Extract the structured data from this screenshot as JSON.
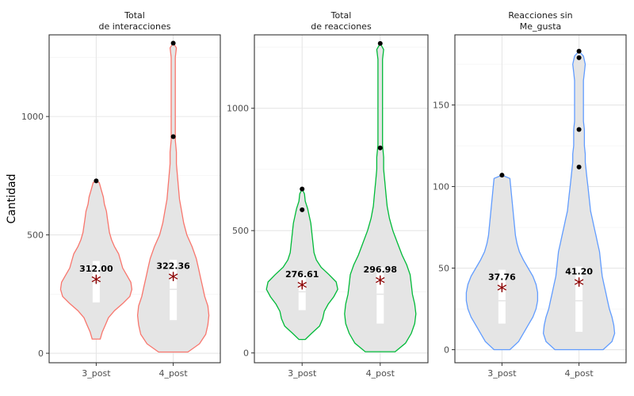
{
  "chart_data": [
    {
      "type": "violin",
      "title": "Total\nde interacciones",
      "ylabel": "Cantidad",
      "categories": [
        "3_post",
        "4_post"
      ],
      "ylim": [
        -40,
        1345
      ],
      "yticks": [
        0,
        500,
        1000
      ],
      "color": "#F8766D",
      "groups": [
        {
          "name": "3_post",
          "mean": 312.0,
          "mean_label": "312.00",
          "box": {
            "q1": 215,
            "q3": 390,
            "median": 300
          },
          "outliers": [
            728
          ],
          "violin": [
            [
              60,
              4
            ],
            [
              90,
              6
            ],
            [
              120,
              9
            ],
            [
              150,
              12
            ],
            [
              180,
              18
            ],
            [
              210,
              26
            ],
            [
              240,
              33
            ],
            [
              270,
              35
            ],
            [
              300,
              34
            ],
            [
              330,
              30
            ],
            [
              360,
              26
            ],
            [
              390,
              24
            ],
            [
              420,
              22
            ],
            [
              450,
              18
            ],
            [
              480,
              15
            ],
            [
              510,
              13
            ],
            [
              540,
              12
            ],
            [
              570,
              11
            ],
            [
              600,
              10
            ],
            [
              630,
              8
            ],
            [
              660,
              7
            ],
            [
              690,
              5
            ],
            [
              720,
              3
            ],
            [
              730,
              0
            ]
          ]
        },
        {
          "name": "4_post",
          "mean": 322.36,
          "mean_label": "322.36",
          "box": {
            "q1": 140,
            "q3": 395,
            "median": 270
          },
          "outliers": [
            915,
            1310
          ],
          "violin": [
            [
              5,
              14
            ],
            [
              40,
              25
            ],
            [
              80,
              31
            ],
            [
              120,
              33
            ],
            [
              160,
              34
            ],
            [
              200,
              33
            ],
            [
              240,
              30
            ],
            [
              280,
              28
            ],
            [
              320,
              26
            ],
            [
              360,
              24
            ],
            [
              400,
              22
            ],
            [
              450,
              18
            ],
            [
              500,
              13
            ],
            [
              550,
              10
            ],
            [
              600,
              8
            ],
            [
              650,
              6
            ],
            [
              700,
              5
            ],
            [
              750,
              4
            ],
            [
              800,
              3
            ],
            [
              850,
              3
            ],
            [
              900,
              2
            ],
            [
              950,
              2
            ],
            [
              1000,
              2
            ],
            [
              1050,
              2
            ],
            [
              1100,
              2
            ],
            [
              1150,
              2
            ],
            [
              1200,
              2
            ],
            [
              1250,
              2
            ],
            [
              1290,
              3
            ],
            [
              1310,
              0
            ]
          ]
        }
      ]
    },
    {
      "type": "violin",
      "title": "Total\nde reacciones",
      "ylabel": "",
      "categories": [
        "3_post",
        "4_post"
      ],
      "ylim": [
        -40,
        1300
      ],
      "yticks": [
        0,
        500,
        1000
      ],
      "color": "#00BA38",
      "groups": [
        {
          "name": "3_post",
          "mean": 276.61,
          "mean_label": "276.61",
          "box": {
            "q1": 175,
            "q3": 320,
            "median": 250
          },
          "outliers": [
            670,
            585
          ],
          "violin": [
            [
              55,
              4
            ],
            [
              80,
              12
            ],
            [
              110,
              22
            ],
            [
              140,
              26
            ],
            [
              170,
              28
            ],
            [
              200,
              33
            ],
            [
              230,
              40
            ],
            [
              260,
              45
            ],
            [
              290,
              43
            ],
            [
              320,
              34
            ],
            [
              350,
              24
            ],
            [
              380,
              18
            ],
            [
              410,
              15
            ],
            [
              440,
              14
            ],
            [
              470,
              13
            ],
            [
              500,
              12
            ],
            [
              530,
              11
            ],
            [
              560,
              9
            ],
            [
              590,
              7
            ],
            [
              620,
              4
            ],
            [
              650,
              3
            ],
            [
              670,
              0
            ]
          ]
        },
        {
          "name": "4_post",
          "mean": 296.98,
          "mean_label": "296.98",
          "box": {
            "q1": 120,
            "q3": 350,
            "median": 240
          },
          "outliers": [
            838,
            1265
          ],
          "violin": [
            [
              5,
              13
            ],
            [
              40,
              22
            ],
            [
              80,
              27
            ],
            [
              120,
              30
            ],
            [
              160,
              31
            ],
            [
              200,
              30
            ],
            [
              240,
              28
            ],
            [
              280,
              27
            ],
            [
              320,
              26
            ],
            [
              360,
              23
            ],
            [
              400,
              19
            ],
            [
              450,
              15
            ],
            [
              500,
              11
            ],
            [
              550,
              8
            ],
            [
              600,
              6
            ],
            [
              650,
              5
            ],
            [
              700,
              4
            ],
            [
              750,
              3
            ],
            [
              800,
              3
            ],
            [
              850,
              2
            ],
            [
              900,
              2
            ],
            [
              950,
              2
            ],
            [
              1000,
              2
            ],
            [
              1050,
              2
            ],
            [
              1100,
              2
            ],
            [
              1150,
              2
            ],
            [
              1200,
              2
            ],
            [
              1240,
              3
            ],
            [
              1265,
              0
            ]
          ]
        }
      ]
    },
    {
      "type": "violin",
      "title": "Reacciones sin\nMe_gusta",
      "ylabel": "",
      "categories": [
        "3_post",
        "4_post"
      ],
      "ylim": [
        -8,
        193
      ],
      "yticks": [
        0,
        50,
        100,
        150
      ],
      "color": "#619CFF",
      "groups": [
        {
          "name": "3_post",
          "mean": 37.76,
          "mean_label": "37.76",
          "box": {
            "q1": 16,
            "q3": 49,
            "median": 30
          },
          "outliers": [
            107
          ],
          "violin": [
            [
              0,
              10
            ],
            [
              5,
              21
            ],
            [
              10,
              27
            ],
            [
              15,
              33
            ],
            [
              20,
              39
            ],
            [
              25,
              43
            ],
            [
              30,
              45
            ],
            [
              35,
              45
            ],
            [
              40,
              43
            ],
            [
              45,
              39
            ],
            [
              50,
              33
            ],
            [
              55,
              27
            ],
            [
              60,
              22
            ],
            [
              65,
              19
            ],
            [
              70,
              17
            ],
            [
              75,
              16
            ],
            [
              80,
              15
            ],
            [
              85,
              14
            ],
            [
              90,
              13
            ],
            [
              95,
              12
            ],
            [
              100,
              11
            ],
            [
              105,
              10
            ],
            [
              107,
              0
            ]
          ]
        },
        {
          "name": "4_post",
          "mean": 41.2,
          "mean_label": "41.20",
          "box": {
            "q1": 11,
            "q3": 51,
            "median": 30
          },
          "outliers": [
            112,
            135,
            179,
            183
          ],
          "violin": [
            [
              0,
              27
            ],
            [
              5,
              37
            ],
            [
              10,
              40
            ],
            [
              15,
              39
            ],
            [
              20,
              37
            ],
            [
              25,
              34
            ],
            [
              30,
              32
            ],
            [
              35,
              30
            ],
            [
              40,
              28
            ],
            [
              45,
              26
            ],
            [
              50,
              25
            ],
            [
              55,
              24
            ],
            [
              60,
              23
            ],
            [
              65,
              21
            ],
            [
              70,
              19
            ],
            [
              75,
              17
            ],
            [
              80,
              15
            ],
            [
              85,
              13
            ],
            [
              90,
              12
            ],
            [
              95,
              11
            ],
            [
              100,
              10
            ],
            [
              105,
              9
            ],
            [
              110,
              8
            ],
            [
              115,
              7
            ],
            [
              120,
              7
            ],
            [
              125,
              6
            ],
            [
              130,
              6
            ],
            [
              135,
              6
            ],
            [
              140,
              5
            ],
            [
              145,
              5
            ],
            [
              150,
              5
            ],
            [
              155,
              5
            ],
            [
              160,
              5
            ],
            [
              165,
              5
            ],
            [
              170,
              6
            ],
            [
              175,
              7
            ],
            [
              180,
              5
            ],
            [
              183,
              0
            ]
          ]
        }
      ]
    }
  ]
}
